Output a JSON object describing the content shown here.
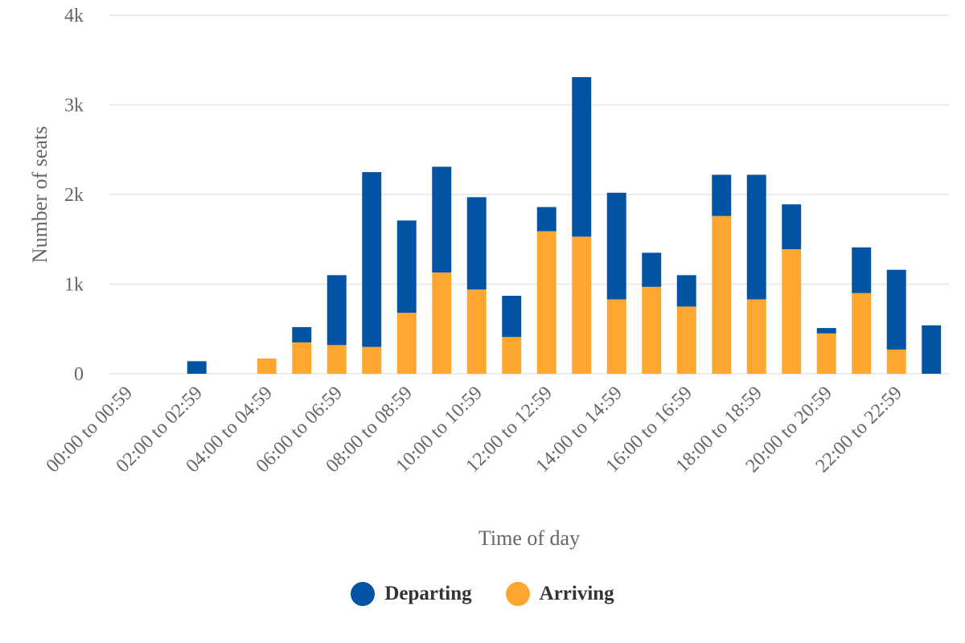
{
  "chart_data": {
    "type": "bar",
    "stacked": true,
    "categories": [
      "00:00 to 00:59",
      "01:00 to 01:59",
      "02:00 to 02:59",
      "03:00 to 03:59",
      "04:00 to 04:59",
      "05:00 to 05:59",
      "06:00 to 06:59",
      "07:00 to 07:59",
      "08:00 to 08:59",
      "09:00 to 09:59",
      "10:00 to 10:59",
      "11:00 to 11:59",
      "12:00 to 12:59",
      "13:00 to 13:59",
      "14:00 to 14:59",
      "15:00 to 15:59",
      "16:00 to 16:59",
      "17:00 to 17:59",
      "18:00 to 18:59",
      "19:00 to 19:59",
      "20:00 to 20:59",
      "21:00 to 21:59",
      "22:00 to 22:59",
      "23:00 to 23:59"
    ],
    "x_tick_labels": [
      "00:00 to 00:59",
      "02:00 to 02:59",
      "04:00 to 04:59",
      "06:00 to 06:59",
      "08:00 to 08:59",
      "10:00 to 10:59",
      "12:00 to 12:59",
      "14:00 to 14:59",
      "16:00 to 16:59",
      "18:00 to 18:59",
      "20:00 to 20:59",
      "22:00 to 22:59"
    ],
    "series": [
      {
        "name": "Arriving",
        "color": "#FFA630",
        "values": [
          0,
          0,
          0,
          0,
          170,
          350,
          320,
          300,
          680,
          1130,
          940,
          410,
          1590,
          1530,
          830,
          970,
          750,
          1760,
          830,
          1390,
          450,
          900,
          270,
          0
        ]
      },
      {
        "name": "Departing",
        "color": "#0353A4",
        "values": [
          0,
          0,
          140,
          0,
          0,
          170,
          780,
          1950,
          1030,
          1180,
          1030,
          460,
          270,
          1780,
          1190,
          380,
          350,
          460,
          1390,
          500,
          60,
          510,
          890,
          540
        ]
      }
    ],
    "legend": [
      {
        "name": "Departing",
        "color": "#0353A4"
      },
      {
        "name": "Arriving",
        "color": "#FFA630"
      }
    ],
    "xlabel": "Time of day",
    "ylabel": "Number of seats",
    "ylim": [
      0,
      4000
    ],
    "y_ticks": [
      {
        "value": 0,
        "label": "0"
      },
      {
        "value": 1000,
        "label": "1k"
      },
      {
        "value": 2000,
        "label": "2k"
      },
      {
        "value": 3000,
        "label": "3k"
      },
      {
        "value": 4000,
        "label": "4k"
      }
    ],
    "grid": true,
    "legend_position": "bottom-center"
  }
}
